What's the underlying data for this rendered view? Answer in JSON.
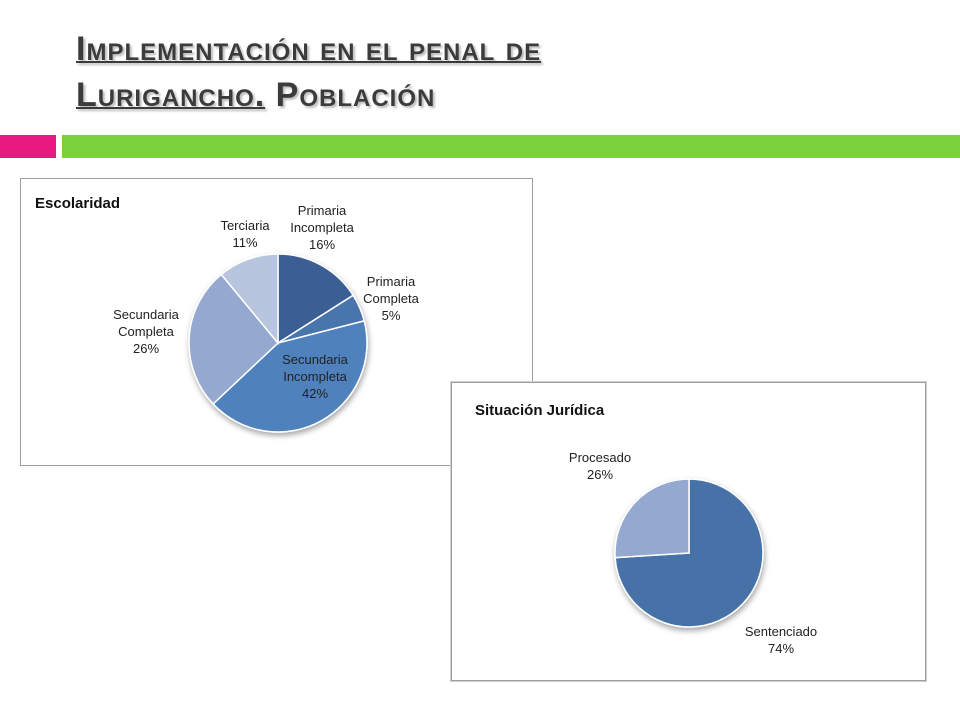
{
  "slide": {
    "title_line1_a": "Implementación en el penal de",
    "title_line2_a": "Lurigancho.",
    "title_line2_b": " Población"
  },
  "colors": {
    "accent_pink": "#e8197f",
    "accent_green": "#7ad13c"
  },
  "chart_data": [
    {
      "type": "pie",
      "title": "Escolaridad",
      "slices": [
        {
          "label": [
            "Primaria",
            "Incompleta",
            "16%"
          ],
          "value": 16,
          "color": "#3a5f94"
        },
        {
          "label": [
            "Primaria",
            "Completa",
            "5%"
          ],
          "value": 5,
          "color": "#4a75ad"
        },
        {
          "label": [
            "Secundaria",
            "Incompleta",
            "42%"
          ],
          "value": 42,
          "color": "#4f81bd"
        },
        {
          "label": [
            "Secundaria",
            "Completa",
            "26%"
          ],
          "value": 26,
          "color": "#95a9d0"
        },
        {
          "label": [
            "Terciaria",
            "11%"
          ],
          "value": 11,
          "color": "#b8c5df"
        }
      ]
    },
    {
      "type": "pie",
      "title": "Situación Jurídica",
      "slices": [
        {
          "label": [
            "Sentenciado",
            "74%"
          ],
          "value": 74,
          "color": "#4672a8"
        },
        {
          "label": [
            "Procesado",
            "26%"
          ],
          "value": 26,
          "color": "#95a9d0"
        }
      ]
    }
  ]
}
